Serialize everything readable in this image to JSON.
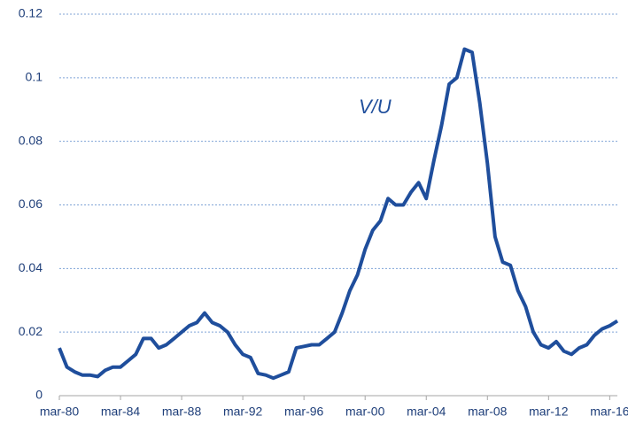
{
  "chart_data": {
    "type": "line",
    "annotation": "V/U",
    "x": [
      "mar-80",
      "sep-80",
      "mar-81",
      "sep-81",
      "mar-82",
      "sep-82",
      "mar-83",
      "sep-83",
      "mar-84",
      "sep-84",
      "mar-85",
      "sep-85",
      "mar-86",
      "sep-86",
      "mar-87",
      "sep-87",
      "mar-88",
      "sep-88",
      "mar-89",
      "sep-89",
      "mar-90",
      "sep-90",
      "mar-91",
      "sep-91",
      "mar-92",
      "sep-92",
      "mar-93",
      "sep-93",
      "mar-94",
      "sep-94",
      "mar-95",
      "sep-95",
      "mar-96",
      "sep-96",
      "mar-97",
      "sep-97",
      "mar-98",
      "sep-98",
      "mar-99",
      "sep-99",
      "mar-00",
      "sep-00",
      "mar-01",
      "sep-01",
      "mar-02",
      "sep-02",
      "mar-03",
      "sep-03",
      "mar-04",
      "sep-04",
      "mar-05",
      "sep-05",
      "mar-06",
      "sep-06",
      "mar-07",
      "sep-07",
      "mar-08",
      "sep-08",
      "mar-09",
      "sep-09",
      "mar-10",
      "sep-10",
      "mar-11",
      "sep-11",
      "mar-12",
      "sep-12",
      "mar-13",
      "sep-13",
      "mar-14",
      "sep-14",
      "mar-15",
      "sep-15",
      "mar-16",
      "sep-16"
    ],
    "series": [
      {
        "name": "V/U",
        "color": "#1f4e9c",
        "values": [
          0.015,
          0.009,
          0.0075,
          0.0065,
          0.0065,
          0.006,
          0.008,
          0.009,
          0.009,
          0.011,
          0.013,
          0.018,
          0.018,
          0.015,
          0.016,
          0.018,
          0.02,
          0.022,
          0.023,
          0.026,
          0.023,
          0.022,
          0.02,
          0.016,
          0.013,
          0.012,
          0.007,
          0.0065,
          0.0055,
          0.0065,
          0.0075,
          0.015,
          0.0155,
          0.016,
          0.016,
          0.018,
          0.02,
          0.026,
          0.033,
          0.038,
          0.046,
          0.052,
          0.055,
          0.062,
          0.06,
          0.06,
          0.064,
          0.067,
          0.062,
          0.074,
          0.085,
          0.098,
          0.1,
          0.109,
          0.108,
          0.092,
          0.073,
          0.05,
          0.042,
          0.041,
          0.033,
          0.028,
          0.02,
          0.016,
          0.015,
          0.017,
          0.014,
          0.013,
          0.015,
          0.016,
          0.019,
          0.021,
          0.022,
          0.0235
        ]
      }
    ],
    "xticks": [
      "mar-80",
      "mar-84",
      "mar-88",
      "mar-92",
      "mar-96",
      "mar-00",
      "mar-04",
      "mar-08",
      "mar-12",
      "mar-16"
    ],
    "ylim": [
      0,
      0.12
    ],
    "yticks": [
      0,
      0.02,
      0.04,
      0.06,
      0.08,
      0.1,
      0.12
    ],
    "grid": true
  }
}
